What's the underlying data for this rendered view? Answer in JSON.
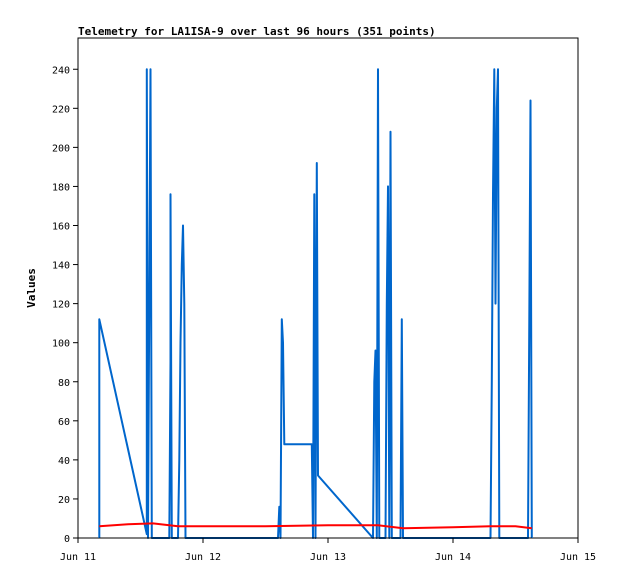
{
  "chart_data": {
    "type": "line",
    "title": "Telemetry for LA1ISA-9 over last 96 hours (351 points)",
    "ylabel": "Values",
    "xlabel": "",
    "x_tick_labels": [
      "Jun 11",
      "Jun 12",
      "Jun 13",
      "Jun 14",
      "Jun 15"
    ],
    "x_range": [
      "Jun 11 00:00",
      "Jun 15 00:00"
    ],
    "ylim": [
      0,
      256
    ],
    "y_ticks": [
      0,
      20,
      40,
      60,
      80,
      100,
      120,
      140,
      160,
      180,
      200,
      220,
      240
    ],
    "grid": false,
    "legend": "none",
    "series": [
      {
        "color": "#0066cc",
        "points": [
          [
            0.17,
            0
          ],
          [
            0.17,
            112
          ],
          [
            0.55,
            2
          ],
          [
            0.55,
            240
          ],
          [
            0.56,
            0
          ],
          [
            0.58,
            240
          ],
          [
            0.59,
            0
          ],
          [
            0.73,
            0
          ],
          [
            0.74,
            90
          ],
          [
            0.74,
            176
          ],
          [
            0.75,
            0
          ],
          [
            0.8,
            0
          ],
          [
            0.81,
            40
          ],
          [
            0.82,
            100
          ],
          [
            0.83,
            140
          ],
          [
            0.84,
            160
          ],
          [
            0.85,
            120
          ],
          [
            0.86,
            0
          ],
          [
            1.6,
            0
          ],
          [
            1.61,
            16
          ],
          [
            1.62,
            0
          ],
          [
            1.63,
            112
          ],
          [
            1.64,
            100
          ],
          [
            1.65,
            48
          ],
          [
            1.87,
            48
          ],
          [
            1.88,
            0
          ],
          [
            1.89,
            176
          ],
          [
            1.9,
            0
          ],
          [
            1.91,
            192
          ],
          [
            1.92,
            32
          ],
          [
            2.36,
            0
          ],
          [
            2.37,
            80
          ],
          [
            2.38,
            96
          ],
          [
            2.39,
            0
          ],
          [
            2.4,
            240
          ],
          [
            2.41,
            0
          ],
          [
            2.46,
            0
          ],
          [
            2.47,
            120
          ],
          [
            2.48,
            180
          ],
          [
            2.49,
            0
          ],
          [
            2.5,
            208
          ],
          [
            2.51,
            0
          ],
          [
            2.58,
            0
          ],
          [
            2.59,
            112
          ],
          [
            2.6,
            0
          ],
          [
            3.3,
            0
          ],
          [
            3.31,
            80
          ],
          [
            3.32,
            176
          ],
          [
            3.33,
            240
          ],
          [
            3.34,
            120
          ],
          [
            3.35,
            220
          ],
          [
            3.36,
            240
          ],
          [
            3.37,
            0
          ],
          [
            3.6,
            0
          ],
          [
            3.61,
            112
          ],
          [
            3.62,
            224
          ],
          [
            3.63,
            0
          ]
        ]
      },
      {
        "color": "#ff0000",
        "points": [
          [
            0.17,
            6
          ],
          [
            0.4,
            7
          ],
          [
            0.6,
            7.5
          ],
          [
            0.8,
            6
          ],
          [
            1.0,
            6
          ],
          [
            1.5,
            6
          ],
          [
            2.0,
            6.5
          ],
          [
            2.4,
            6.5
          ],
          [
            2.6,
            5
          ],
          [
            3.0,
            5.5
          ],
          [
            3.3,
            6
          ],
          [
            3.5,
            6
          ],
          [
            3.63,
            5
          ]
        ]
      },
      {
        "color": "#000000",
        "points": [
          [
            0.17,
            0
          ],
          [
            3.63,
            0
          ]
        ]
      }
    ]
  }
}
